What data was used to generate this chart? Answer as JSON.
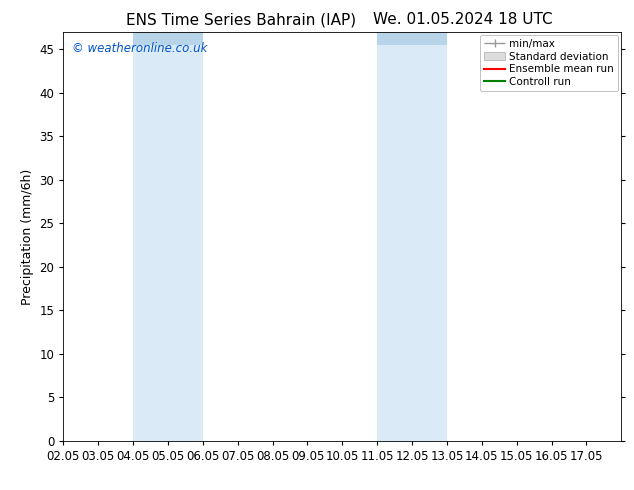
{
  "title_left": "ENS Time Series Bahrain (IAP)",
  "title_right": "We. 01.05.2024 18 UTC",
  "ylabel": "Precipitation (mm/6h)",
  "watermark": "© weatheronline.co.uk",
  "watermark_color": "#0055cc",
  "xlim": [
    2.0,
    18.0
  ],
  "ylim": [
    0,
    47
  ],
  "yticks": [
    0,
    5,
    10,
    15,
    20,
    25,
    30,
    35,
    40,
    45
  ],
  "xtick_labels": [
    "02.05",
    "03.05",
    "04.05",
    "05.05",
    "06.05",
    "07.05",
    "08.05",
    "09.05",
    "10.05",
    "11.05",
    "12.05",
    "13.05",
    "14.05",
    "15.05",
    "16.05",
    "17.05"
  ],
  "xtick_positions": [
    2,
    3,
    4,
    5,
    6,
    7,
    8,
    9,
    10,
    11,
    12,
    13,
    14,
    15,
    16,
    17
  ],
  "shaded_regions": [
    {
      "xmin": 4.0,
      "xmax": 6.0,
      "color": "#daeaf7"
    },
    {
      "xmin": 11.0,
      "xmax": 13.0,
      "color": "#daeaf7"
    }
  ],
  "shaded_top_regions": [
    {
      "xmin": 4.0,
      "xmax": 6.0
    },
    {
      "xmin": 11.0,
      "xmax": 13.0
    }
  ],
  "background_color": "#ffffff",
  "plot_bg_color": "#ffffff",
  "legend_labels": [
    "min/max",
    "Standard deviation",
    "Ensemble mean run",
    "Controll run"
  ],
  "legend_colors": [
    "#999999",
    "#cccccc",
    "#ff0000",
    "#008000"
  ],
  "title_fontsize": 11,
  "axis_label_fontsize": 9,
  "tick_fontsize": 8.5
}
